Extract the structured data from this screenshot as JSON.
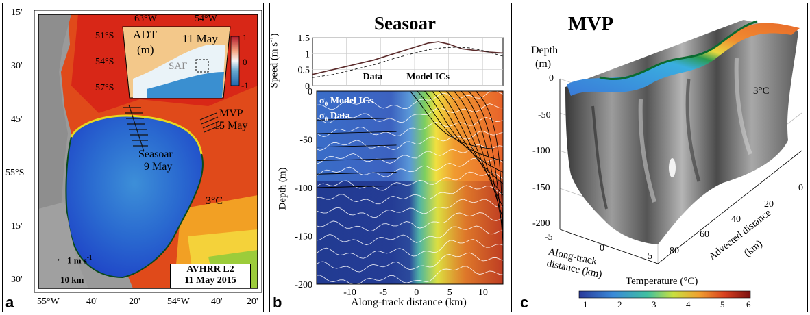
{
  "panel_a": {
    "label": "a",
    "lat_ticks": [
      "15'",
      "30'",
      "45'",
      "55°S",
      "15'",
      "30'"
    ],
    "lon_ticks": [
      "55°W",
      "40'",
      "20'",
      "54°W",
      "40'",
      "20'"
    ],
    "inset": {
      "title": "ADT",
      "unit": "(m)",
      "date": "11 May",
      "front": "SAF",
      "lon_labels": [
        "63°W",
        "54°W"
      ],
      "lat_labels": [
        "51°S",
        "54°S",
        "57°S"
      ],
      "colorbar_ticks": [
        "1",
        "0",
        "-1"
      ]
    },
    "annotations": {
      "mvp": "MVP",
      "mvp_date": "15 May",
      "seasoar": "Seasoar",
      "seasoar_date": "9 May",
      "temp": "3°C"
    },
    "scale_arrow": "1 m s",
    "scale_arrow_exp": "-1",
    "scale_bar": "10 km",
    "source_box": [
      "AVHRR L2",
      "11 May 2015"
    ]
  },
  "panel_b": {
    "label": "b",
    "title": "Seasoar",
    "xlabel": "Along-track distance (km)",
    "speed_ylabel": "Speed (m s",
    "speed_ylabel_exp": "-1",
    "speed_ylabel_end": ")",
    "depth_ylabel": "Depth (m)",
    "legend_speed": [
      "Data",
      "Model ICs"
    ],
    "legend_sigma": [
      "Model ICs",
      "Data"
    ],
    "sigma_symbol": "σ",
    "sigma_sub": "θ"
  },
  "panel_c": {
    "label": "c",
    "title": "MVP",
    "depth_label": [
      "Depth",
      "(m)"
    ],
    "depth_ticks": [
      "0",
      "-50",
      "-100",
      "-150",
      "-200"
    ],
    "along_ticks": [
      "-5",
      "0",
      "5"
    ],
    "along_label": [
      "Along-track",
      "distance (km)"
    ],
    "advected_ticks": [
      "0",
      "20",
      "40",
      "60",
      "80"
    ],
    "advected_label": [
      "Advected distance",
      "(km)"
    ],
    "temp_annotation": "3°C",
    "colorbar_label": "Temperature (°C)",
    "colorbar_ticks": [
      "1",
      "2",
      "3",
      "4",
      "5",
      "6"
    ]
  },
  "chart_data": [
    {
      "type": "line",
      "title": "Seasoar",
      "xlabel": "Along-track distance (km)",
      "ylabel": "Speed (m s-1)",
      "xlim": [
        -15,
        13
      ],
      "ylim": [
        0,
        1.5
      ],
      "x_ticks": [
        -10,
        -5,
        0,
        5,
        10
      ],
      "y_ticks": [
        0,
        0.5,
        1,
        1.5
      ],
      "series": [
        {
          "name": "Data",
          "style": "solid",
          "x": [
            -15,
            -12,
            -9,
            -6,
            -3,
            0,
            2,
            3.5,
            5,
            7,
            9,
            11,
            13
          ],
          "y": [
            0.35,
            0.5,
            0.65,
            0.8,
            1.0,
            1.2,
            1.33,
            1.37,
            1.3,
            1.15,
            1.1,
            1.05,
            1.02
          ]
        },
        {
          "name": "Model ICs",
          "style": "dashed",
          "x": [
            -15,
            -12,
            -9,
            -6,
            -3,
            0,
            2,
            4,
            6,
            8,
            10,
            12,
            13
          ],
          "y": [
            0.25,
            0.35,
            0.5,
            0.65,
            0.85,
            1.02,
            1.12,
            1.18,
            1.2,
            1.18,
            1.1,
            0.98,
            0.92
          ]
        }
      ]
    },
    {
      "type": "heatmap",
      "xlabel": "Along-track distance (km)",
      "ylabel": "Depth (m)",
      "xlim": [
        -15,
        13
      ],
      "ylim": [
        -200,
        0
      ],
      "x_ticks": [
        -10,
        -5,
        0,
        5,
        10
      ],
      "y_ticks": [
        -200,
        -150,
        -100,
        -50
      ],
      "color_scale": "temperature",
      "clim": [
        1,
        6
      ],
      "columns_x": [
        -15,
        -10,
        -5,
        -2,
        0,
        2,
        3,
        4,
        6,
        8,
        10,
        13
      ],
      "temperature_by_column": [
        2.0,
        2.0,
        2.1,
        2.4,
        2.8,
        3.3,
        3.8,
        4.3,
        4.8,
        5.0,
        5.1,
        5.2
      ]
    }
  ]
}
